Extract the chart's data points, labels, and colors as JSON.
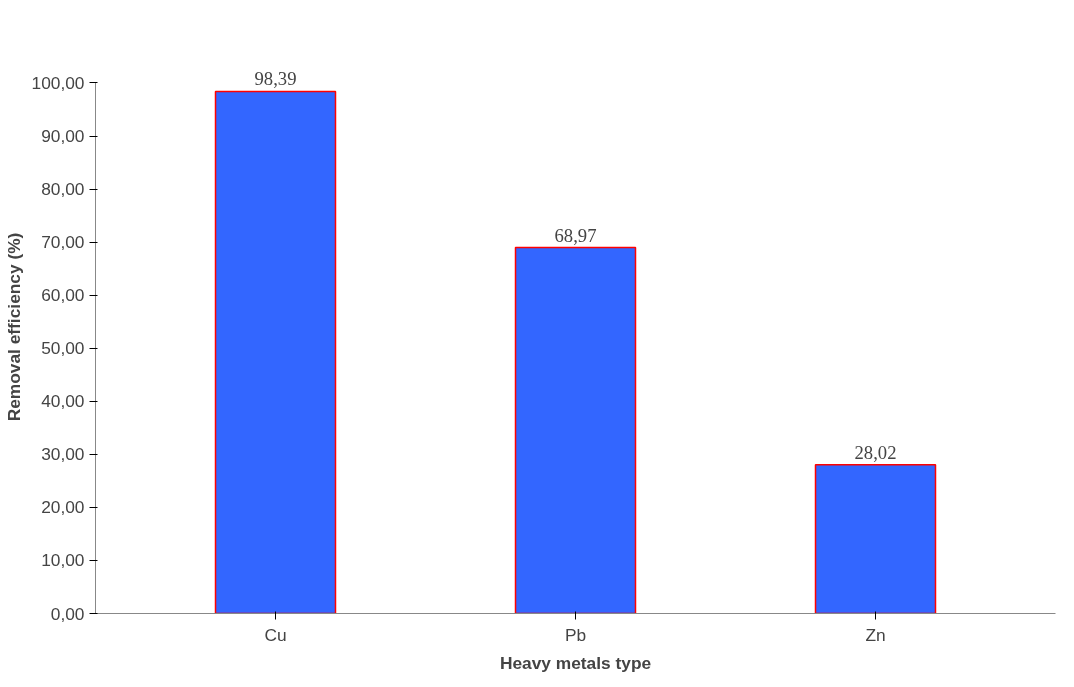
{
  "chart_data": {
    "type": "bar",
    "xlabel": "Heavy metals type",
    "ylabel": "Removal efficiency (%)",
    "categories": [
      "Cu",
      "Pb",
      "Zn"
    ],
    "values": [
      98.39,
      68.97,
      28.02
    ],
    "value_labels": [
      "98,39",
      "68,97",
      "28,02"
    ],
    "color": "#3366ff",
    "ylim": [
      0,
      100
    ],
    "yticks": [
      {
        "value": 0,
        "label": "0,00"
      },
      {
        "value": 10,
        "label": "10,00"
      },
      {
        "value": 20,
        "label": "20,00"
      },
      {
        "value": 30,
        "label": "30,00"
      },
      {
        "value": 40,
        "label": "40,00"
      },
      {
        "value": 50,
        "label": "50,00"
      },
      {
        "value": 60,
        "label": "60,00"
      },
      {
        "value": 70,
        "label": "70,00"
      },
      {
        "value": 80,
        "label": "80,00"
      },
      {
        "value": 90,
        "label": "90,00"
      },
      {
        "value": 100,
        "label": "100,00"
      }
    ],
    "grid": false
  }
}
